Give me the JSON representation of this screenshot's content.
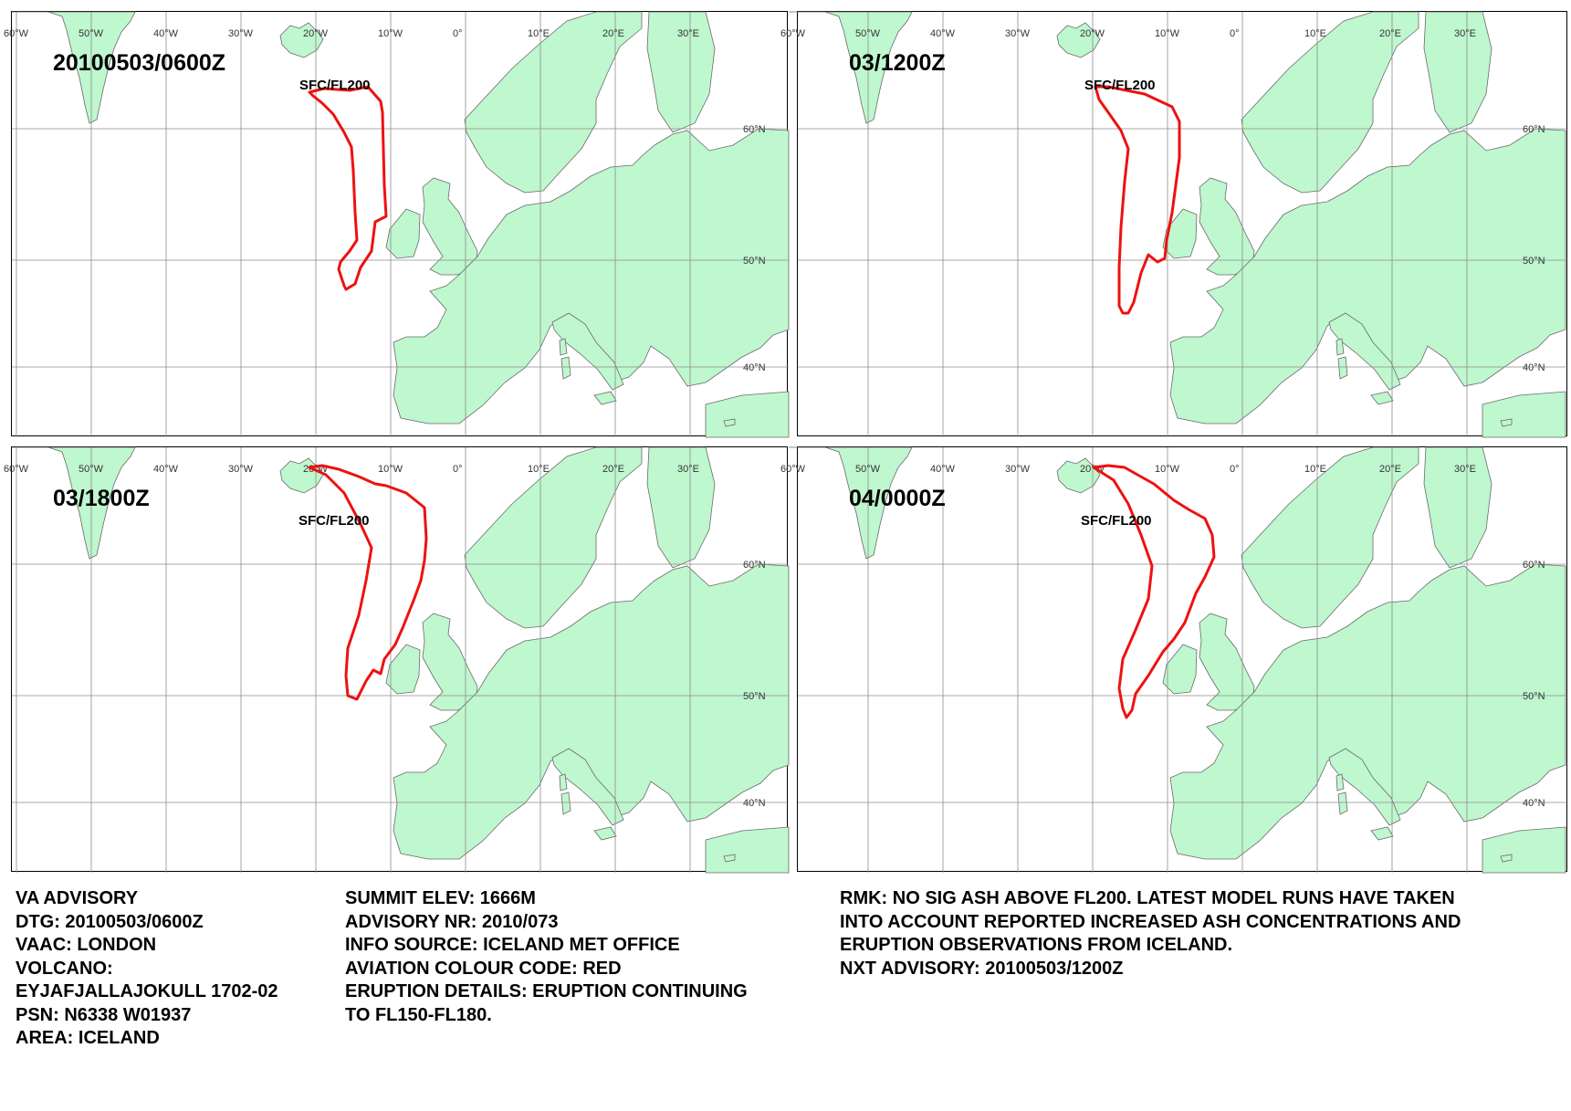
{
  "lon_labels": [
    "60°W",
    "50°W",
    "40°W",
    "30°W",
    "20°W",
    "10°W",
    "0°",
    "10°E",
    "20°E",
    "30°E"
  ],
  "lat_labels": [
    "60°N",
    "50°N",
    "40°N"
  ],
  "colors": {
    "land": "#bff7cf",
    "coast": "#6a6a6a",
    "grid": "#8c8c8c",
    "ash": "#ee1111",
    "frame": "#000000"
  },
  "panels": [
    {
      "title": "20100503/0600Z",
      "level": "SFC/FL200"
    },
    {
      "title": "03/1200Z",
      "level": "SFC/FL200"
    },
    {
      "title": "03/1800Z",
      "level": "SFC/FL200"
    },
    {
      "title": "04/0000Z",
      "level": "SFC/FL200"
    }
  ],
  "advisory": {
    "left": [
      "VA ADVISORY",
      "DTG:  20100503/0600Z",
      "VAAC:  LONDON",
      "VOLCANO:",
      "EYJAFJALLAJOKULL 1702-02",
      "PSN:  N6338 W01937",
      "AREA:  ICELAND"
    ],
    "middle": [
      "SUMMIT ELEV:  1666M",
      "ADVISORY NR:  2010/073",
      "INFO SOURCE:  ICELAND MET OFFICE",
      "AVIATION COLOUR CODE:  RED",
      "ERUPTION DETAILS:  ERUPTION CONTINUING",
      "TO FL150-FL180."
    ],
    "right": [
      "RMK:  NO SIG ASH ABOVE FL200. LATEST MODEL RUNS HAVE TAKEN",
      "INTO ACCOUNT REPORTED INCREASED ASH CONCENTRATIONS AND",
      "ERUPTION OBSERVATIONS FROM ICELAND.",
      "NXT ADVISORY:  20100503/1200Z"
    ]
  }
}
